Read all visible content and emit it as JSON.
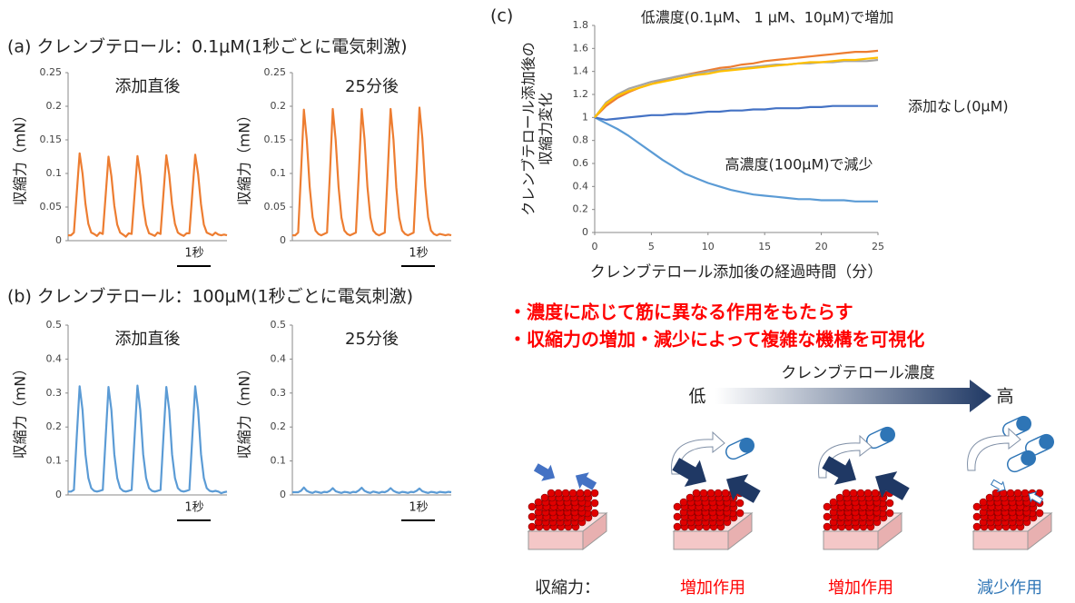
{
  "panels": {
    "a": "(a)  クレンブテロール：0.1μM(1秒ごとに電気刺激)",
    "b": "(b)  クレンブテロール：100μM(1秒ごとに電気刺激)",
    "c": "(c)"
  },
  "bullets": [
    "・濃度に応じて筋に異なる作用をもたらす",
    "・収縮力の増加・減少によって複雑な機構を可視化"
  ],
  "diagram": {
    "gradient_label": "クレンブテロール濃度",
    "low": "低",
    "high": "高",
    "row_label": "収縮力：",
    "effects": [
      "増加作用",
      "増加作用",
      "減少作用"
    ]
  },
  "chart_data": [
    {
      "type": "line",
      "title": "添加直後",
      "y_label": "収縮力（mN）",
      "scale_bar": "1秒",
      "color": "#ed7d31",
      "ylim": [
        0,
        0.25
      ],
      "yticks": [
        0,
        0.05,
        0.1,
        0.15,
        0.2,
        0.25
      ],
      "values": [
        0.008,
        0.008,
        0.012,
        0.07,
        0.13,
        0.1,
        0.055,
        0.025,
        0.012,
        0.01,
        0.007,
        0.012,
        0.01,
        0.068,
        0.125,
        0.096,
        0.052,
        0.024,
        0.012,
        0.009,
        0.006,
        0.011,
        0.01,
        0.068,
        0.126,
        0.097,
        0.053,
        0.024,
        0.011,
        0.009,
        0.007,
        0.012,
        0.01,
        0.069,
        0.127,
        0.098,
        0.054,
        0.025,
        0.012,
        0.009,
        0.007,
        0.011,
        0.011,
        0.07,
        0.128,
        0.099,
        0.054,
        0.024,
        0.012,
        0.01,
        0.008,
        0.012,
        0.009,
        0.008,
        0.009,
        0.008
      ]
    },
    {
      "type": "line",
      "title": "25分後",
      "y_label": "収縮力（mN）",
      "scale_bar": "1秒",
      "color": "#ed7d31",
      "ylim": [
        0,
        0.25
      ],
      "yticks": [
        0,
        0.05,
        0.1,
        0.15,
        0.2,
        0.25
      ],
      "values": [
        0.008,
        0.008,
        0.012,
        0.1,
        0.195,
        0.15,
        0.08,
        0.035,
        0.015,
        0.01,
        0.008,
        0.01,
        0.012,
        0.1,
        0.196,
        0.15,
        0.08,
        0.034,
        0.015,
        0.01,
        0.008,
        0.01,
        0.012,
        0.1,
        0.196,
        0.151,
        0.08,
        0.035,
        0.015,
        0.01,
        0.008,
        0.01,
        0.012,
        0.1,
        0.196,
        0.15,
        0.079,
        0.034,
        0.015,
        0.01,
        0.008,
        0.01,
        0.012,
        0.101,
        0.198,
        0.152,
        0.08,
        0.035,
        0.015,
        0.01,
        0.008,
        0.01,
        0.009,
        0.008,
        0.009,
        0.008
      ]
    },
    {
      "type": "line",
      "title": "添加直後",
      "y_label": "収縮力（mN）",
      "scale_bar": "1秒",
      "color": "#5b9bd5",
      "ylim": [
        0,
        0.5
      ],
      "yticks": [
        0,
        0.1,
        0.2,
        0.3,
        0.4,
        0.5
      ],
      "values": [
        0.01,
        0.01,
        0.015,
        0.17,
        0.32,
        0.25,
        0.12,
        0.05,
        0.02,
        0.012,
        0.01,
        0.012,
        0.015,
        0.17,
        0.318,
        0.25,
        0.12,
        0.05,
        0.02,
        0.012,
        0.01,
        0.012,
        0.015,
        0.17,
        0.322,
        0.25,
        0.12,
        0.05,
        0.02,
        0.012,
        0.01,
        0.012,
        0.015,
        0.17,
        0.318,
        0.25,
        0.12,
        0.05,
        0.02,
        0.012,
        0.01,
        0.012,
        0.015,
        0.17,
        0.32,
        0.25,
        0.12,
        0.05,
        0.02,
        0.012,
        0.01,
        0.012,
        0.01,
        0.005,
        0.008,
        0.01
      ]
    },
    {
      "type": "line",
      "title": "25分後",
      "y_label": "収縮力（mN）",
      "scale_bar": "1秒",
      "color": "#5b9bd5",
      "ylim": [
        0,
        0.5
      ],
      "yticks": [
        0,
        0.1,
        0.2,
        0.3,
        0.4,
        0.5
      ],
      "values": [
        0.008,
        0.008,
        0.008,
        0.012,
        0.022,
        0.012,
        0.008,
        0.006,
        0.01,
        0.008,
        0.006,
        0.009,
        0.008,
        0.012,
        0.02,
        0.011,
        0.008,
        0.006,
        0.009,
        0.008,
        0.006,
        0.009,
        0.008,
        0.013,
        0.021,
        0.012,
        0.008,
        0.006,
        0.01,
        0.008,
        0.006,
        0.009,
        0.008,
        0.012,
        0.02,
        0.012,
        0.008,
        0.006,
        0.009,
        0.008,
        0.006,
        0.009,
        0.008,
        0.012,
        0.019,
        0.011,
        0.008,
        0.006,
        0.009,
        0.008,
        0.006,
        0.009,
        0.008,
        0.007,
        0.009,
        0.008
      ]
    },
    {
      "type": "line",
      "y_label": [
        "クレンブテロール添加後の",
        "収縮力変化"
      ],
      "x_label": "クレンブテロール添加後の経過時間（分）",
      "annotations": [
        "低濃度(0.1μM、 1 μM、10μM)で増加",
        "添加なし(0μM)",
        "高濃度(100μM)で減少"
      ],
      "xlim": [
        0,
        25
      ],
      "xticks": [
        0,
        5,
        10,
        15,
        20,
        25
      ],
      "ylim": [
        0,
        1.8
      ],
      "yticks": [
        0,
        0.2,
        0.4,
        0.6,
        0.8,
        1,
        1.2,
        1.4,
        1.6,
        1.8
      ],
      "x": [
        0,
        1,
        2,
        3,
        4,
        5,
        6,
        7,
        8,
        9,
        10,
        11,
        12,
        13,
        14,
        15,
        16,
        17,
        18,
        19,
        20,
        21,
        22,
        23,
        24,
        25
      ],
      "series": [
        {
          "color": "#5b9bd5",
          "values": [
            1,
            0.95,
            0.9,
            0.84,
            0.77,
            0.7,
            0.63,
            0.57,
            0.51,
            0.47,
            0.43,
            0.4,
            0.37,
            0.35,
            0.33,
            0.32,
            0.31,
            0.3,
            0.29,
            0.29,
            0.28,
            0.28,
            0.28,
            0.27,
            0.27,
            0.27
          ]
        },
        {
          "color": "#4472c4",
          "values": [
            1,
            0.98,
            0.99,
            1.0,
            1.01,
            1.02,
            1.02,
            1.03,
            1.03,
            1.04,
            1.05,
            1.05,
            1.06,
            1.06,
            1.07,
            1.07,
            1.08,
            1.08,
            1.08,
            1.09,
            1.09,
            1.1,
            1.1,
            1.1,
            1.1,
            1.1
          ]
        },
        {
          "color": "#ed7d31",
          "values": [
            1,
            1.1,
            1.17,
            1.22,
            1.26,
            1.29,
            1.32,
            1.35,
            1.37,
            1.39,
            1.41,
            1.43,
            1.44,
            1.46,
            1.47,
            1.49,
            1.5,
            1.51,
            1.52,
            1.53,
            1.54,
            1.55,
            1.56,
            1.57,
            1.57,
            1.58
          ]
        },
        {
          "color": "#a5a5a5",
          "values": [
            1,
            1.13,
            1.2,
            1.25,
            1.28,
            1.31,
            1.33,
            1.35,
            1.37,
            1.38,
            1.4,
            1.41,
            1.42,
            1.43,
            1.44,
            1.45,
            1.46,
            1.46,
            1.47,
            1.47,
            1.48,
            1.48,
            1.49,
            1.49,
            1.49,
            1.5
          ]
        },
        {
          "color": "#ffc000",
          "values": [
            1,
            1.12,
            1.19,
            1.23,
            1.26,
            1.29,
            1.31,
            1.33,
            1.35,
            1.37,
            1.38,
            1.4,
            1.41,
            1.42,
            1.43,
            1.44,
            1.45,
            1.46,
            1.47,
            1.48,
            1.48,
            1.49,
            1.5,
            1.5,
            1.51,
            1.52
          ]
        }
      ]
    }
  ]
}
